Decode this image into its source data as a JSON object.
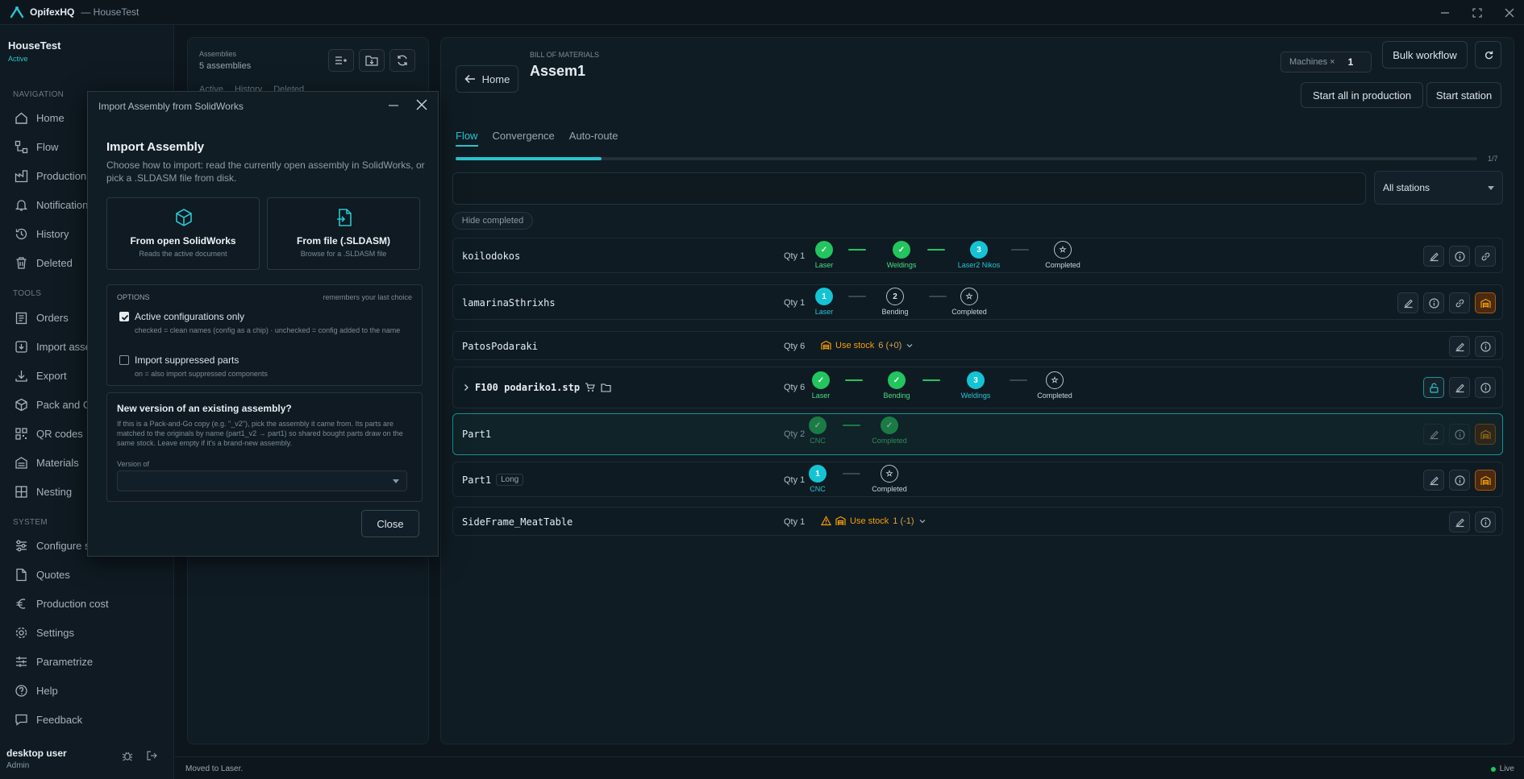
{
  "titlebar": {
    "app": "OpifexHQ",
    "workspace": "— HouseTest"
  },
  "workspace": {
    "name": "HouseTest",
    "status": "Active"
  },
  "sidebar": {
    "nav_label": "NAVIGATION",
    "nav": [
      "Home",
      "Flow",
      "Production",
      "Notifications",
      "History",
      "Deleted"
    ],
    "tools_label": "TOOLS",
    "tools": [
      "Orders",
      "Import assembly",
      "Export",
      "Pack and Go",
      "QR codes",
      "Materials",
      "Nesting"
    ],
    "system_label": "SYSTEM",
    "system": [
      "Configure stations",
      "Quotes",
      "Production cost",
      "Settings",
      "Parametrize",
      "Help",
      "Feedback"
    ]
  },
  "user": {
    "name": "desktop user",
    "role": "Admin"
  },
  "status": {
    "message": "Moved to Laser.",
    "live": "Live"
  },
  "assemblies": {
    "label": "Assemblies",
    "count": "5 assemblies",
    "tabs": [
      "Active",
      "History",
      "Deleted"
    ]
  },
  "bom": {
    "label": "BILL OF MATERIALS",
    "title": "Assem1",
    "home": "Home",
    "machines_label": "Machines ×",
    "machines_value": "1",
    "bulk": "Bulk workflow",
    "start_all": "Start all in production",
    "start_station": "Start station",
    "tabs": [
      "Flow",
      "Convergence",
      "Auto-route"
    ],
    "progress_text": "1/7",
    "progress_fraction": 0.143,
    "station_filter": "All stations",
    "hide_completed": "Hide completed"
  },
  "parts": [
    {
      "name": "koilodokos",
      "qty": "Qty 1",
      "steps": [
        {
          "label": "Laser",
          "state": "done"
        },
        {
          "label": "Weldings",
          "state": "done"
        },
        {
          "label": "Laser2 Nikos",
          "state": "current",
          "num": "3"
        },
        {
          "label": "Completed",
          "state": "final"
        }
      ]
    },
    {
      "name": "lamarinaSthrixhs",
      "qty": "Qty 1",
      "steps": [
        {
          "label": "Laser",
          "state": "current",
          "num": "1"
        },
        {
          "label": "Bending",
          "state": "pending",
          "num": "2"
        },
        {
          "label": "Completed",
          "state": "final"
        }
      ]
    },
    {
      "name": "PatosPodaraki",
      "qty": "Qty 6",
      "stock": "Use stock",
      "stock_amount": "6 (+0)"
    },
    {
      "name": "F100 podariko1.stp",
      "qty": "Qty 6",
      "steps": [
        {
          "label": "Laser",
          "state": "done"
        },
        {
          "label": "Bending",
          "state": "done"
        },
        {
          "label": "Weldings",
          "state": "current",
          "num": "3"
        },
        {
          "label": "Completed",
          "state": "final"
        }
      ]
    },
    {
      "name": "Part1",
      "qty": "Qty 2",
      "steps": [
        {
          "label": "CNC",
          "state": "done"
        },
        {
          "label": "Completed",
          "state": "done"
        }
      ]
    },
    {
      "name": "Part1",
      "tag": "Long",
      "qty": "Qty 1",
      "steps": [
        {
          "label": "CNC",
          "state": "current",
          "num": "1"
        },
        {
          "label": "Completed",
          "state": "final"
        }
      ]
    },
    {
      "name": "SideFrame_MeatTable",
      "qty": "Qty 1",
      "stock": "Use stock",
      "stock_amount": "1 (-1)"
    }
  ],
  "modal": {
    "window_title": "Import Assembly from SolidWorks",
    "heading": "Import Assembly",
    "description": "Choose how to import: read the currently open assembly in SolidWorks, or pick a .SLDASM file from disk.",
    "option1_title": "From open SolidWorks",
    "option1_sub": "Reads the active document",
    "option2_title": "From file (.SLDASM)",
    "option2_sub": "Browse for a .SLDASM file",
    "options_label": "OPTIONS",
    "options_note": "remembers your last choice",
    "cb1_label": "Active configurations only",
    "cb1_help": "checked = clean names (config as a chip) · unchecked = config added to the name",
    "cb2_label": "Import suppressed parts",
    "cb2_help": "on = also import suppressed components",
    "newver_title": "New version of an existing assembly?",
    "newver_desc": "If this is a Pack-and-Go copy (e.g. \"_v2\"), pick the assembly it came from. Its parts are matched to the originals by name (part1_v2 → part1) so shared bought parts draw on the same stock. Leave empty if it's a brand-new assembly.",
    "version_label": "Version of",
    "close": "Close"
  }
}
